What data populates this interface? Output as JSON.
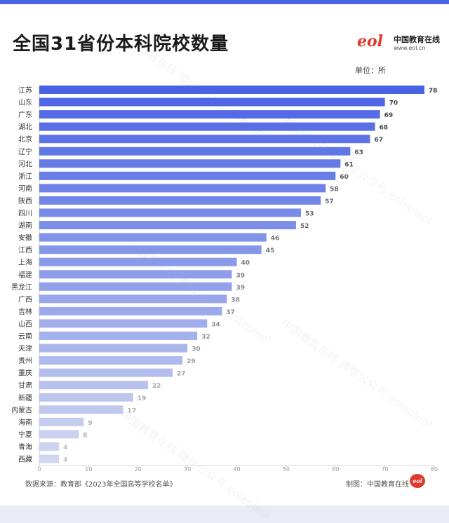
{
  "title": "全国31省份本科院校数量",
  "logo": {
    "mark": "eol",
    "name": "中国教育在线",
    "url": "www.eol.cn"
  },
  "unit_label": "单位：所",
  "source_label": "数据来源：教育部《2023年全国高等学校名单》",
  "credit_label": "制图：中国教育在线",
  "credit_badge": "eol",
  "watermark": {
    "line1": "中国教育在线",
    "line2": "微信公众号 eoleoleol"
  },
  "chart_data": {
    "type": "bar",
    "orientation": "horizontal",
    "title": "全国31省份本科院校数量",
    "xlabel": "",
    "ylabel": "",
    "xlim": [
      0,
      80
    ],
    "x_ticks": [
      0,
      10,
      20,
      30,
      40,
      50,
      60,
      70,
      80
    ],
    "grid": false,
    "categories": [
      "江苏",
      "山东",
      "广东",
      "湖北",
      "北京",
      "辽宁",
      "河北",
      "浙江",
      "河南",
      "陕西",
      "四川",
      "湖南",
      "安徽",
      "江西",
      "上海",
      "福建",
      "黑龙江",
      "广西",
      "吉林",
      "山西",
      "云南",
      "天津",
      "贵州",
      "重庆",
      "甘肃",
      "新疆",
      "内蒙古",
      "海南",
      "宁夏",
      "青海",
      "西藏"
    ],
    "values": [
      78,
      70,
      69,
      68,
      67,
      63,
      61,
      60,
      58,
      57,
      53,
      52,
      46,
      45,
      40,
      39,
      39,
      38,
      37,
      34,
      32,
      30,
      29,
      27,
      22,
      19,
      17,
      9,
      8,
      4,
      4
    ],
    "colors": {
      "start": "#4a63e4",
      "end": "#d3d8f0"
    }
  }
}
